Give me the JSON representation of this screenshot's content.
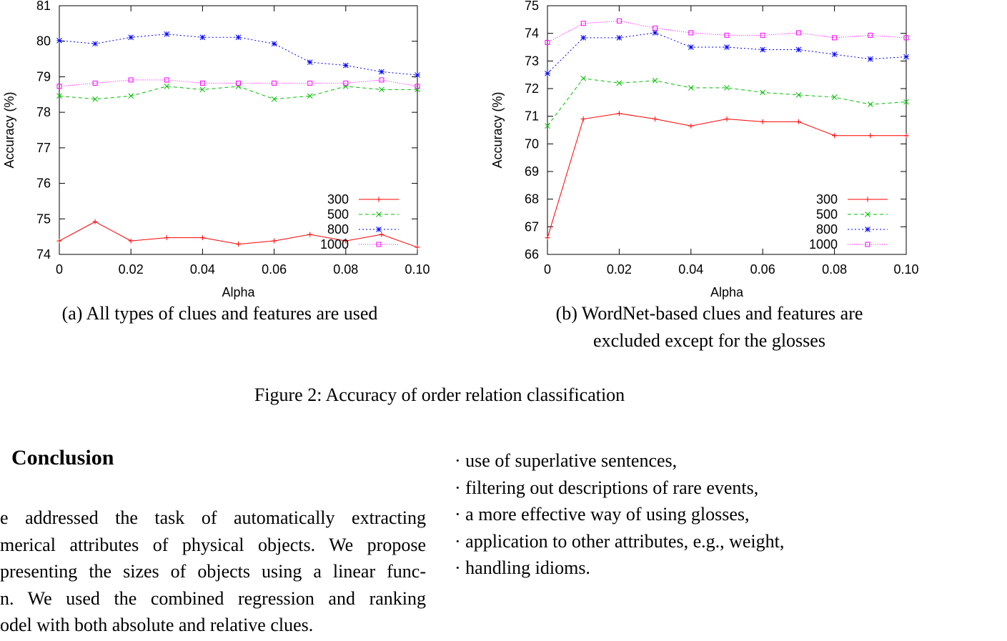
{
  "chart_data": [
    {
      "type": "line",
      "xlabel": "Alpha",
      "ylabel": "Accuracy (%)",
      "xlim": [
        0,
        0.1
      ],
      "ylim": [
        74,
        81
      ],
      "xticks": [
        0,
        0.02,
        0.04,
        0.06,
        0.08,
        0.1
      ],
      "xtick_labels": [
        "0",
        "0.02",
        "0.04",
        "0.06",
        "0.08",
        "0.10"
      ],
      "yticks": [
        74,
        75,
        76,
        77,
        78,
        79,
        80,
        81
      ],
      "ytick_labels": [
        "74",
        "75",
        "76",
        "77",
        "78",
        "79",
        "80",
        "81"
      ],
      "x": [
        0,
        0.01,
        0.02,
        0.03,
        0.04,
        0.05,
        0.06,
        0.07,
        0.08,
        0.09,
        0.1
      ],
      "legend_position": "bottom-right",
      "grid": false,
      "series": [
        {
          "name": "300",
          "color": "#ff0000",
          "marker": "plus",
          "dash": "",
          "values": [
            74.38,
            74.92,
            74.38,
            74.47,
            74.47,
            74.29,
            74.38,
            74.56,
            74.38,
            74.56,
            74.2
          ]
        },
        {
          "name": "500",
          "color": "#00c000",
          "marker": "x",
          "dash": "5,4",
          "values": [
            78.46,
            78.37,
            78.46,
            78.73,
            78.64,
            78.73,
            78.37,
            78.46,
            78.73,
            78.64,
            78.64
          ]
        },
        {
          "name": "800",
          "color": "#0000ff",
          "marker": "star",
          "dash": "2,3",
          "values": [
            80.02,
            79.93,
            80.11,
            80.2,
            80.11,
            80.11,
            79.93,
            79.41,
            79.32,
            79.14,
            79.05
          ]
        },
        {
          "name": "1000",
          "color": "#ff00ff",
          "marker": "square",
          "dash": "1,2",
          "values": [
            78.73,
            78.82,
            78.91,
            78.91,
            78.82,
            78.82,
            78.82,
            78.82,
            78.82,
            78.91,
            78.73
          ]
        }
      ]
    },
    {
      "type": "line",
      "xlabel": "Alpha",
      "ylabel": "Accuracy (%)",
      "xlim": [
        0,
        0.1
      ],
      "ylim": [
        66,
        75
      ],
      "xticks": [
        0,
        0.02,
        0.04,
        0.06,
        0.08,
        0.1
      ],
      "xtick_labels": [
        "0",
        "0.02",
        "0.04",
        "0.06",
        "0.08",
        "0.10"
      ],
      "yticks": [
        66,
        67,
        68,
        69,
        70,
        71,
        72,
        73,
        74,
        75
      ],
      "ytick_labels": [
        "66",
        "67",
        "68",
        "69",
        "70",
        "71",
        "72",
        "73",
        "74",
        "75"
      ],
      "x": [
        0,
        0.01,
        0.02,
        0.03,
        0.04,
        0.05,
        0.06,
        0.07,
        0.08,
        0.09,
        0.1
      ],
      "legend_position": "bottom-right",
      "grid": false,
      "series": [
        {
          "name": "300",
          "color": "#ff0000",
          "marker": "plus",
          "dash": "",
          "values": [
            66.6,
            70.9,
            71.1,
            70.9,
            70.65,
            70.9,
            70.8,
            70.8,
            70.3,
            70.3,
            70.3
          ]
        },
        {
          "name": "500",
          "color": "#00c000",
          "marker": "x",
          "dash": "5,4",
          "values": [
            70.65,
            72.37,
            72.2,
            72.29,
            72.03,
            72.03,
            71.86,
            71.77,
            71.69,
            71.43,
            71.52
          ]
        },
        {
          "name": "800",
          "color": "#0000ff",
          "marker": "star",
          "dash": "2,3",
          "values": [
            72.55,
            73.84,
            73.84,
            74.02,
            73.5,
            73.5,
            73.41,
            73.41,
            73.24,
            73.07,
            73.15
          ]
        },
        {
          "name": "1000",
          "color": "#ff00ff",
          "marker": "square",
          "dash": "1,2",
          "values": [
            73.67,
            74.36,
            74.45,
            74.19,
            74.02,
            73.93,
            73.93,
            74.02,
            73.84,
            73.93,
            73.84
          ]
        }
      ]
    }
  ],
  "captions": {
    "a": "(a) All types of clues and features are used",
    "b_line1": "(b) WordNet-based clues and features are",
    "b_line2": "excluded except for the glosses",
    "figure": "Figure 2:  Accuracy of order relation classification"
  },
  "section": {
    "title": "Conclusion",
    "lines": [
      "e addressed the task of automatically extracting",
      "merical attributes of physical objects. We propose",
      "presenting the sizes of objects using a linear func-",
      "n.  We used the combined regression and ranking",
      "odel with both absolute and relative clues."
    ]
  },
  "bullets": [
    "· use of superlative sentences,",
    "· filtering out descriptions of rare events,",
    "· a more effective way of using glosses,",
    "· application to other attributes, e.g., weight,",
    "· handling idioms."
  ]
}
